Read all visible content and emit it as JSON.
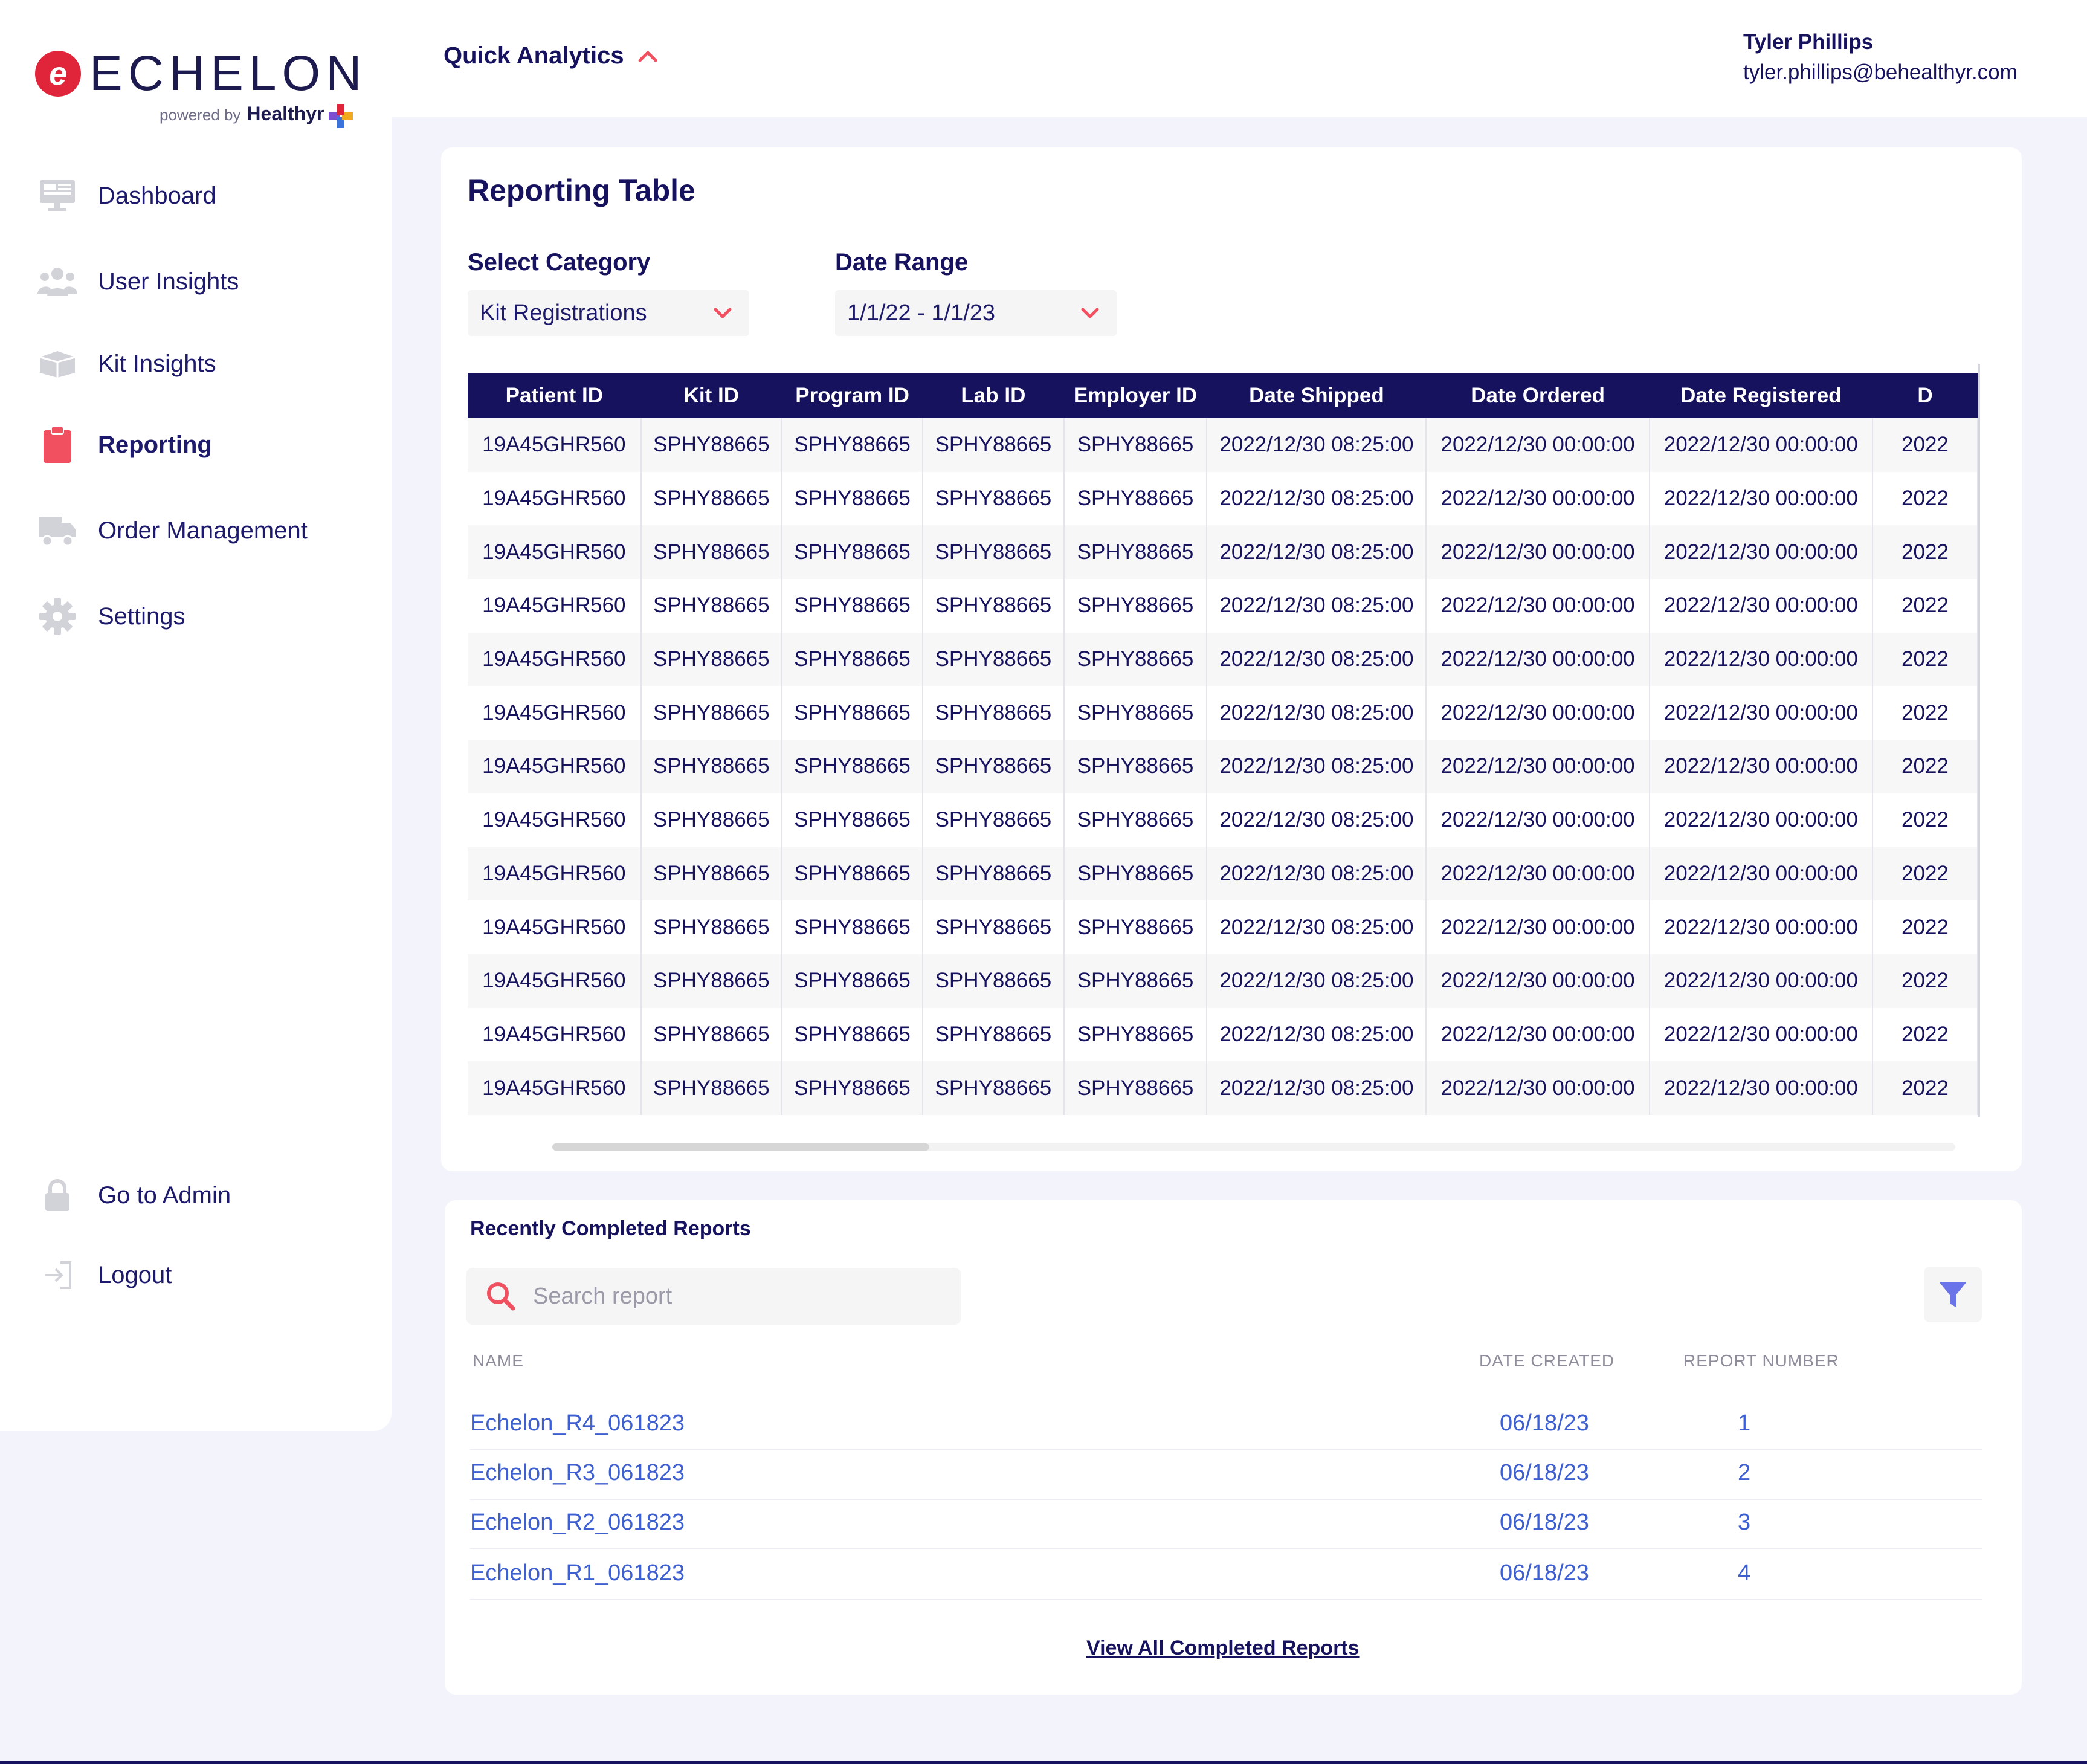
{
  "brand": {
    "name": "ECHELON",
    "powered_by": "powered by",
    "partner": "Healthyr"
  },
  "sidebar": {
    "items": [
      {
        "label": "Dashboard",
        "icon": "monitor-icon"
      },
      {
        "label": "User Insights",
        "icon": "users-icon"
      },
      {
        "label": "Kit Insights",
        "icon": "box-icon"
      },
      {
        "label": "Reporting",
        "icon": "clipboard-icon",
        "active": true
      },
      {
        "label": "Order Management",
        "icon": "truck-icon"
      },
      {
        "label": "Settings",
        "icon": "gear-icon"
      }
    ],
    "bottom_items": [
      {
        "label": "Go to Admin",
        "icon": "lock-icon"
      },
      {
        "label": "Logout",
        "icon": "logout-icon"
      }
    ]
  },
  "header": {
    "quick_analytics": "Quick Analytics",
    "user_name": "Tyler Phillips",
    "user_email": "tyler.phillips@behealthyr.com"
  },
  "reporting_table": {
    "title": "Reporting Table",
    "category_label": "Select Category",
    "category_value": "Kit Registrations",
    "date_label": "Date Range",
    "date_value": "1/1/22 - 1/1/23",
    "columns": [
      "Patient ID",
      "Kit ID",
      "Program ID",
      "Lab ID",
      "Employer ID",
      "Date Shipped",
      "Date Ordered",
      "Date Registered",
      "D"
    ],
    "rows": [
      [
        "19A45GHR560",
        "SPHY88665",
        "SPHY88665",
        "SPHY88665",
        "SPHY88665",
        "2022/12/30 08:25:00",
        "2022/12/30 00:00:00",
        "2022/12/30 00:00:00",
        "2022"
      ],
      [
        "19A45GHR560",
        "SPHY88665",
        "SPHY88665",
        "SPHY88665",
        "SPHY88665",
        "2022/12/30 08:25:00",
        "2022/12/30 00:00:00",
        "2022/12/30 00:00:00",
        "2022"
      ],
      [
        "19A45GHR560",
        "SPHY88665",
        "SPHY88665",
        "SPHY88665",
        "SPHY88665",
        "2022/12/30 08:25:00",
        "2022/12/30 00:00:00",
        "2022/12/30 00:00:00",
        "2022"
      ],
      [
        "19A45GHR560",
        "SPHY88665",
        "SPHY88665",
        "SPHY88665",
        "SPHY88665",
        "2022/12/30 08:25:00",
        "2022/12/30 00:00:00",
        "2022/12/30 00:00:00",
        "2022"
      ],
      [
        "19A45GHR560",
        "SPHY88665",
        "SPHY88665",
        "SPHY88665",
        "SPHY88665",
        "2022/12/30 08:25:00",
        "2022/12/30 00:00:00",
        "2022/12/30 00:00:00",
        "2022"
      ],
      [
        "19A45GHR560",
        "SPHY88665",
        "SPHY88665",
        "SPHY88665",
        "SPHY88665",
        "2022/12/30 08:25:00",
        "2022/12/30 00:00:00",
        "2022/12/30 00:00:00",
        "2022"
      ],
      [
        "19A45GHR560",
        "SPHY88665",
        "SPHY88665",
        "SPHY88665",
        "SPHY88665",
        "2022/12/30 08:25:00",
        "2022/12/30 00:00:00",
        "2022/12/30 00:00:00",
        "2022"
      ],
      [
        "19A45GHR560",
        "SPHY88665",
        "SPHY88665",
        "SPHY88665",
        "SPHY88665",
        "2022/12/30 08:25:00",
        "2022/12/30 00:00:00",
        "2022/12/30 00:00:00",
        "2022"
      ],
      [
        "19A45GHR560",
        "SPHY88665",
        "SPHY88665",
        "SPHY88665",
        "SPHY88665",
        "2022/12/30 08:25:00",
        "2022/12/30 00:00:00",
        "2022/12/30 00:00:00",
        "2022"
      ],
      [
        "19A45GHR560",
        "SPHY88665",
        "SPHY88665",
        "SPHY88665",
        "SPHY88665",
        "2022/12/30 08:25:00",
        "2022/12/30 00:00:00",
        "2022/12/30 00:00:00",
        "2022"
      ],
      [
        "19A45GHR560",
        "SPHY88665",
        "SPHY88665",
        "SPHY88665",
        "SPHY88665",
        "2022/12/30 08:25:00",
        "2022/12/30 00:00:00",
        "2022/12/30 00:00:00",
        "2022"
      ],
      [
        "19A45GHR560",
        "SPHY88665",
        "SPHY88665",
        "SPHY88665",
        "SPHY88665",
        "2022/12/30 08:25:00",
        "2022/12/30 00:00:00",
        "2022/12/30 00:00:00",
        "2022"
      ],
      [
        "19A45GHR560",
        "SPHY88665",
        "SPHY88665",
        "SPHY88665",
        "SPHY88665",
        "2022/12/30 08:25:00",
        "2022/12/30 00:00:00",
        "2022/12/30 00:00:00",
        "2022"
      ]
    ]
  },
  "recent_reports": {
    "title": "Recently Completed Reports",
    "search_placeholder": "Search report",
    "col_name": "NAME",
    "col_date": "DATE CREATED",
    "col_number": "REPORT NUMBER",
    "items": [
      {
        "name": "Echelon_R4_061823",
        "date": "06/18/23",
        "number": "1"
      },
      {
        "name": "Echelon_R3_061823",
        "date": "06/18/23",
        "number": "2"
      },
      {
        "name": "Echelon_R2_061823",
        "date": "06/18/23",
        "number": "3"
      },
      {
        "name": "Echelon_R1_061823",
        "date": "06/18/23",
        "number": "4"
      }
    ],
    "view_all": "View All Completed Reports"
  },
  "colors": {
    "navy": "#16125e",
    "accent_red": "#e0243a",
    "link_blue": "#3d5fd0",
    "icon_grey": "#c9c9d2"
  }
}
